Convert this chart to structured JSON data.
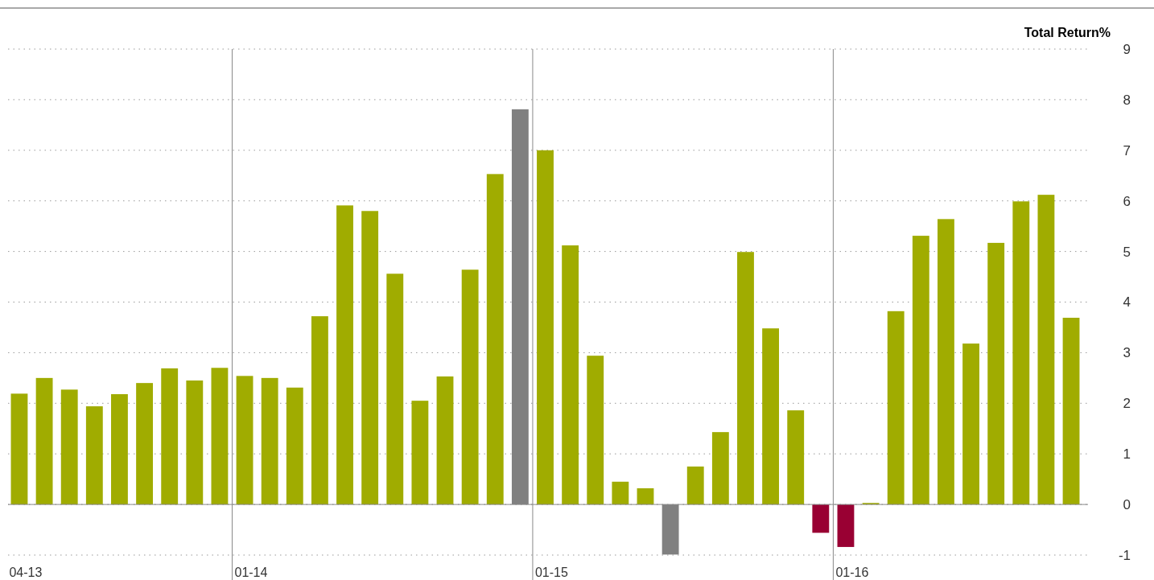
{
  "chart_data": {
    "type": "bar",
    "ylabel": "Total Return%",
    "categories": [
      "04-13",
      null,
      null,
      null,
      null,
      null,
      null,
      null,
      null,
      "01-14",
      null,
      null,
      null,
      null,
      null,
      null,
      null,
      null,
      null,
      null,
      null,
      "01-15",
      null,
      null,
      null,
      null,
      null,
      null,
      null,
      null,
      null,
      null,
      null,
      "01-16",
      null,
      null,
      null,
      null,
      null,
      null,
      null,
      null,
      null
    ],
    "values": [
      2.19,
      2.5,
      2.27,
      1.94,
      2.18,
      2.4,
      2.69,
      2.45,
      2.7,
      2.54,
      2.5,
      2.31,
      3.72,
      5.91,
      5.8,
      4.56,
      2.05,
      2.53,
      4.64,
      6.53,
      7.81,
      7.0,
      5.12,
      2.94,
      0.45,
      0.32,
      -0.99,
      0.75,
      1.43,
      4.99,
      3.48,
      1.86,
      -0.56,
      -0.84,
      0.03,
      3.82,
      5.31,
      5.64,
      3.18,
      5.17,
      5.99,
      6.12,
      3.69
    ],
    "colors": [
      "#a0ac00",
      "#a0ac00",
      "#a0ac00",
      "#a0ac00",
      "#a0ac00",
      "#a0ac00",
      "#a0ac00",
      "#a0ac00",
      "#a0ac00",
      "#a0ac00",
      "#a0ac00",
      "#a0ac00",
      "#a0ac00",
      "#a0ac00",
      "#a0ac00",
      "#a0ac00",
      "#a0ac00",
      "#a0ac00",
      "#a0ac00",
      "#a0ac00",
      "#808080",
      "#a0ac00",
      "#a0ac00",
      "#a0ac00",
      "#a0ac00",
      "#a0ac00",
      "#808080",
      "#a0ac00",
      "#a0ac00",
      "#a0ac00",
      "#a0ac00",
      "#a0ac00",
      "#990033",
      "#990033",
      "#a0ac00",
      "#a0ac00",
      "#a0ac00",
      "#a0ac00",
      "#a0ac00",
      "#a0ac00",
      "#a0ac00",
      "#a0ac00",
      "#a0ac00"
    ],
    "ylim": [
      -1,
      9
    ],
    "yticks": [
      -1,
      0,
      1,
      2,
      3,
      4,
      5,
      6,
      7,
      8,
      9
    ],
    "grid": "y"
  }
}
